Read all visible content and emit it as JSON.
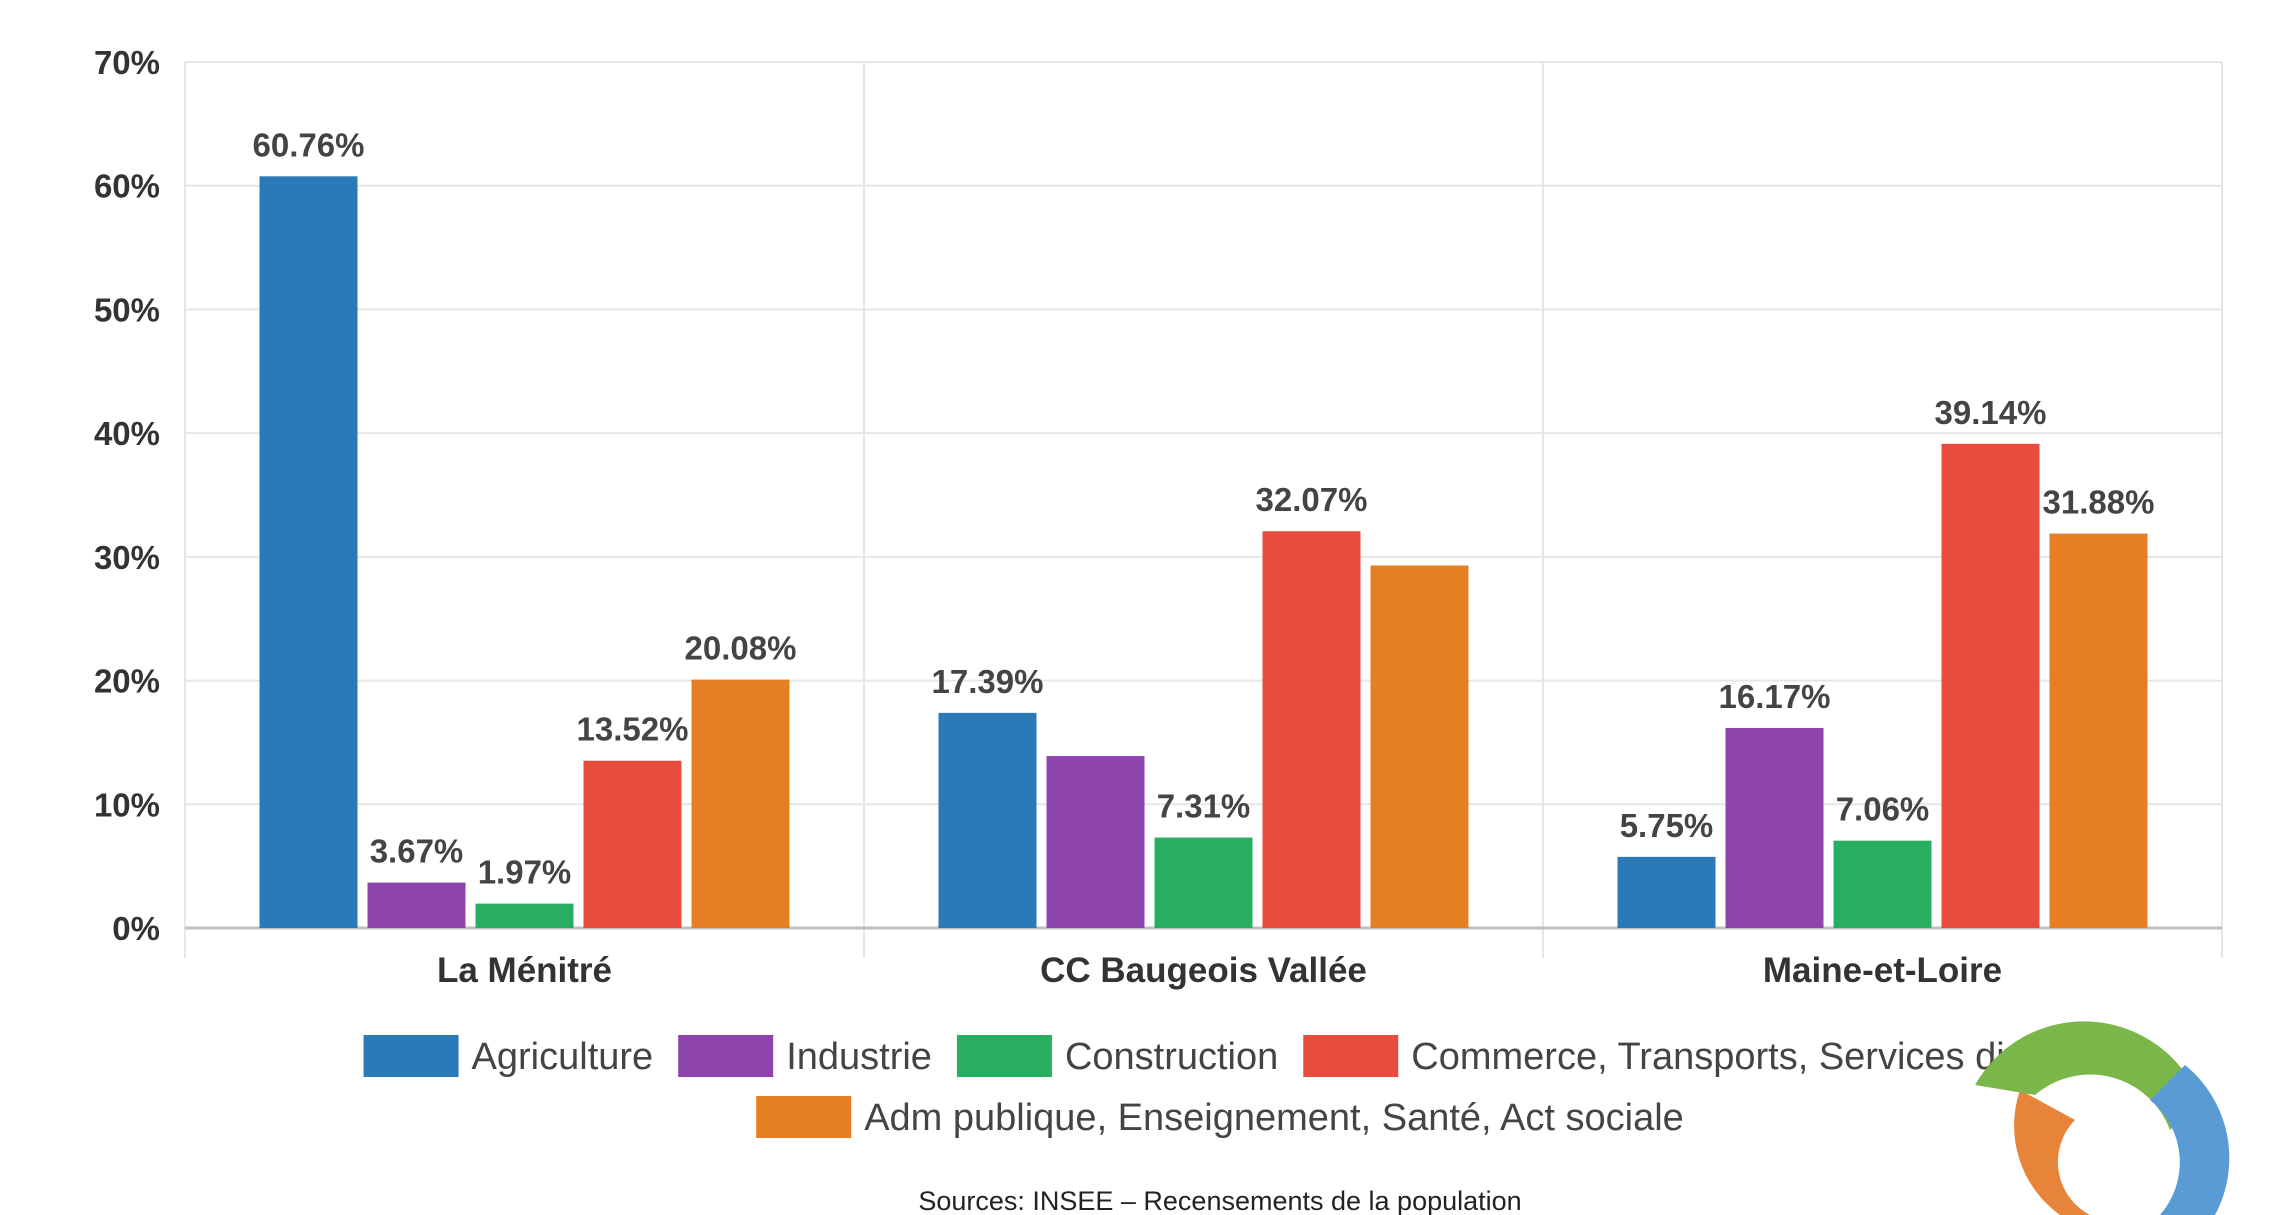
{
  "chart_data": {
    "type": "bar",
    "categories": [
      "La Ménitré",
      "CC Baugeois Vallée",
      "Maine-et-Loire"
    ],
    "series": [
      {
        "name": "Agriculture",
        "color": "#2a7ab8",
        "values": [
          60.76,
          17.39,
          5.75
        ],
        "labels": [
          "60.76%",
          "17.39%",
          "5.75%"
        ]
      },
      {
        "name": "Industrie",
        "color": "#8e44ad",
        "values": [
          3.67,
          13.9,
          16.17
        ],
        "labels": [
          "3.67%",
          "",
          "16.17%"
        ]
      },
      {
        "name": "Construction",
        "color": "#27ae60",
        "values": [
          1.97,
          7.31,
          7.06
        ],
        "labels": [
          "1.97%",
          "7.31%",
          "7.06%"
        ]
      },
      {
        "name": "Commerce, Transports, Services divers",
        "color": "#e74c3c",
        "values": [
          13.52,
          32.07,
          39.14
        ],
        "labels": [
          "13.52%",
          "32.07%",
          "39.14%"
        ]
      },
      {
        "name": "Adm publique, Enseignement, Santé, Act sociale",
        "color": "#e67e22",
        "values": [
          20.08,
          29.3,
          31.88
        ],
        "labels": [
          "20.08%",
          "",
          "31.88%"
        ]
      }
    ],
    "ylim": [
      0,
      70
    ],
    "yticks": [
      "0%",
      "10%",
      "20%",
      "30%",
      "40%",
      "50%",
      "60%",
      "70%"
    ],
    "grid": true,
    "legend_position": "bottom"
  },
  "source": "Sources: INSEE – Recensements de la population",
  "logo_icon": "circular-arrows-logo-icon"
}
